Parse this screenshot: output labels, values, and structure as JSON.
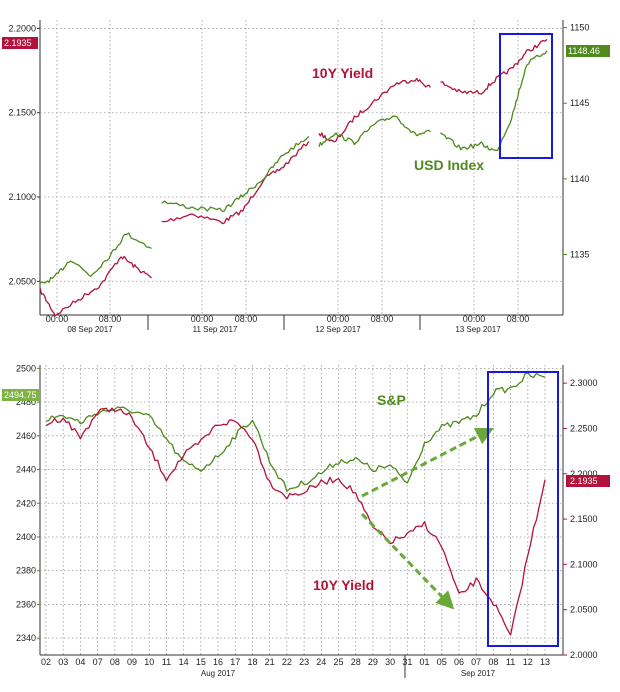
{
  "chart_data": [
    {
      "type": "line",
      "title": "",
      "x_ticks": [
        "00:00",
        "08:00",
        "00:00",
        "08:00",
        "00:00",
        "08:00",
        "00:00",
        "08:00"
      ],
      "x_dates": [
        "08 Sep 2017",
        "11 Sep 2017",
        "12 Sep 2017",
        "13 Sep 2017"
      ],
      "y_left": {
        "ticks": [
          "2.0500",
          "2.1000",
          "2.1500",
          "2.2000"
        ],
        "ylim": [
          2.03,
          2.205
        ],
        "badge": "2.1935"
      },
      "y_right": {
        "ticks": [
          "1135",
          "1140",
          "1145",
          "1150"
        ],
        "ylim": [
          1131,
          1150.5
        ],
        "badge": "1148.46"
      },
      "series": [
        {
          "name": "10Y Yield",
          "axis": "left",
          "color": "#b3123a",
          "segments": [
            [
              [
                0,
                2.045
              ],
              [
                0.03,
                2.03
              ],
              [
                0.08,
                2.04
              ],
              [
                0.12,
                2.048
              ],
              [
                0.16,
                2.065
              ],
              [
                0.19,
                2.058
              ],
              [
                0.22,
                2.052
              ]
            ],
            [
              [
                0.24,
                2.085
              ],
              [
                0.3,
                2.09
              ],
              [
                0.36,
                2.085
              ],
              [
                0.4,
                2.092
              ],
              [
                0.44,
                2.11
              ],
              [
                0.48,
                2.118
              ],
              [
                0.53,
                2.133
              ]
            ],
            [
              [
                0.55,
                2.138
              ],
              [
                0.58,
                2.132
              ],
              [
                0.62,
                2.147
              ],
              [
                0.66,
                2.157
              ],
              [
                0.7,
                2.167
              ],
              [
                0.74,
                2.17
              ],
              [
                0.77,
                2.165
              ]
            ],
            [
              [
                0.79,
                2.168
              ],
              [
                0.83,
                2.162
              ],
              [
                0.87,
                2.162
              ],
              [
                0.9,
                2.17
              ],
              [
                0.93,
                2.176
              ],
              [
                0.96,
                2.186
              ],
              [
                1.0,
                2.1935
              ]
            ]
          ]
        },
        {
          "name": "USD Index",
          "axis": "right",
          "color": "#4e8a1c",
          "segments": [
            [
              [
                0,
                1133
              ],
              [
                0.03,
                1133.5
              ],
              [
                0.06,
                1134.7
              ],
              [
                0.1,
                1133.6
              ],
              [
                0.14,
                1135.0
              ],
              [
                0.17,
                1136.4
              ],
              [
                0.22,
                1135.4
              ]
            ],
            [
              [
                0.24,
                1138.5
              ],
              [
                0.3,
                1138.1
              ],
              [
                0.36,
                1137.9
              ],
              [
                0.4,
                1138.9
              ],
              [
                0.44,
                1140.0
              ],
              [
                0.48,
                1141.6
              ],
              [
                0.53,
                1142.8
              ]
            ],
            [
              [
                0.55,
                1142.2
              ],
              [
                0.58,
                1143.0
              ],
              [
                0.62,
                1142.4
              ],
              [
                0.66,
                1143.6
              ],
              [
                0.7,
                1144.2
              ],
              [
                0.74,
                1142.9
              ],
              [
                0.77,
                1143.1
              ]
            ],
            [
              [
                0.79,
                1143.0
              ],
              [
                0.83,
                1142.0
              ],
              [
                0.87,
                1142.3
              ],
              [
                0.9,
                1141.8
              ],
              [
                0.93,
                1144.0
              ],
              [
                0.96,
                1147.6
              ],
              [
                1.0,
                1148.46
              ]
            ]
          ]
        }
      ],
      "annotations": [
        "10Y Yield",
        "USD Index"
      ]
    },
    {
      "type": "line",
      "title": "",
      "x_ticks": [
        "02",
        "03",
        "04",
        "07",
        "08",
        "09",
        "10",
        "11",
        "14",
        "15",
        "16",
        "17",
        "18",
        "21",
        "22",
        "23",
        "24",
        "25",
        "28",
        "29",
        "30",
        "31",
        "01",
        "05",
        "06",
        "07",
        "08",
        "11",
        "12",
        "13"
      ],
      "x_months": [
        "Aug 2017",
        "Sep 2017"
      ],
      "y_left": {
        "ticks": [
          "2340",
          "2360",
          "2380",
          "2400",
          "2420",
          "2440",
          "2460",
          "2480",
          "2500"
        ],
        "ylim": [
          2330,
          2502
        ],
        "badge": "2494.75"
      },
      "y_right": {
        "ticks": [
          "2.0000",
          "2.0500",
          "2.1000",
          "2.1500",
          "2.2000",
          "2.2500",
          "2.3000"
        ],
        "ylim": [
          2.0,
          2.32
        ],
        "badge": "2.1935"
      },
      "series": [
        {
          "name": "S&P",
          "axis": "left",
          "color": "#4e8a1c",
          "points": [
            [
              0,
              2470
            ],
            [
              1,
              2472
            ],
            [
              2,
              2468
            ],
            [
              3,
              2474
            ],
            [
              4,
              2476
            ],
            [
              5,
              2475
            ],
            [
              6,
              2471
            ],
            [
              7,
              2458
            ],
            [
              8,
              2444
            ],
            [
              9,
              2440
            ],
            [
              10,
              2448
            ],
            [
              11,
              2460
            ],
            [
              12,
              2470
            ],
            [
              13,
              2445
            ],
            [
              14,
              2428
            ],
            [
              15,
              2432
            ],
            [
              16,
              2438
            ],
            [
              17,
              2445
            ],
            [
              18,
              2446
            ],
            [
              19,
              2440
            ],
            [
              20,
              2442
            ],
            [
              21,
              2432
            ],
            [
              22,
              2456
            ],
            [
              23,
              2465
            ],
            [
              24,
              2468
            ],
            [
              25,
              2472
            ],
            [
              26,
              2486
            ],
            [
              27,
              2488
            ],
            [
              28,
              2496
            ],
            [
              29,
              2494.75
            ]
          ]
        },
        {
          "name": "10Y Yield",
          "axis": "right",
          "color": "#b3123a",
          "points": [
            [
              0,
              2.255
            ],
            [
              1,
              2.262
            ],
            [
              2,
              2.24
            ],
            [
              3,
              2.268
            ],
            [
              4,
              2.272
            ],
            [
              5,
              2.262
            ],
            [
              6,
              2.228
            ],
            [
              7,
              2.195
            ],
            [
              8,
              2.22
            ],
            [
              9,
              2.235
            ],
            [
              10,
              2.255
            ],
            [
              11,
              2.258
            ],
            [
              12,
              2.24
            ],
            [
              13,
              2.19
            ],
            [
              14,
              2.175
            ],
            [
              15,
              2.18
            ],
            [
              16,
              2.19
            ],
            [
              17,
              2.195
            ],
            [
              18,
              2.178
            ],
            [
              19,
              2.14
            ],
            [
              20,
              2.125
            ],
            [
              21,
              2.132
            ],
            [
              22,
              2.145
            ],
            [
              23,
              2.12
            ],
            [
              24,
              2.065
            ],
            [
              25,
              2.082
            ],
            [
              26,
              2.058
            ],
            [
              27,
              2.02
            ],
            [
              28,
              2.11
            ],
            [
              29,
              2.1935
            ]
          ]
        }
      ],
      "annotations": [
        "S&P",
        "10Y Yield"
      ]
    }
  ],
  "colors": {
    "yield": "#b3123a",
    "usd": "#4e8a1c",
    "highlight": "#1818e6"
  }
}
